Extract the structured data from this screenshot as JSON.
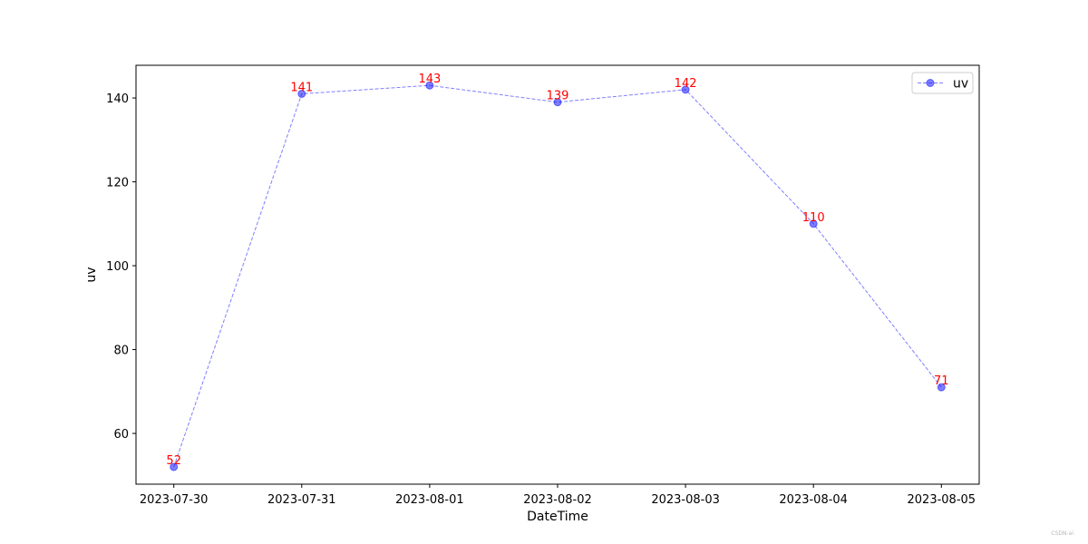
{
  "chart_data": {
    "type": "line",
    "title": "",
    "xlabel": "DateTime",
    "ylabel": "uv",
    "categories": [
      "2023-07-30",
      "2023-07-31",
      "2023-08-01",
      "2023-08-02",
      "2023-08-03",
      "2023-08-04",
      "2023-08-05"
    ],
    "series": [
      {
        "name": "uv",
        "values": [
          52,
          141,
          143,
          139,
          142,
          110,
          71
        ],
        "color": "#0000ff",
        "line_style": "dashed",
        "marker": "circle",
        "opacity": 0.5
      }
    ],
    "data_label_color": "#ff0000",
    "ylim": [
      47.9,
      147.8
    ],
    "yticks": [
      60,
      80,
      100,
      120,
      140
    ],
    "grid": false,
    "legend_position": "top-right"
  },
  "watermark": "CSDN-ai"
}
